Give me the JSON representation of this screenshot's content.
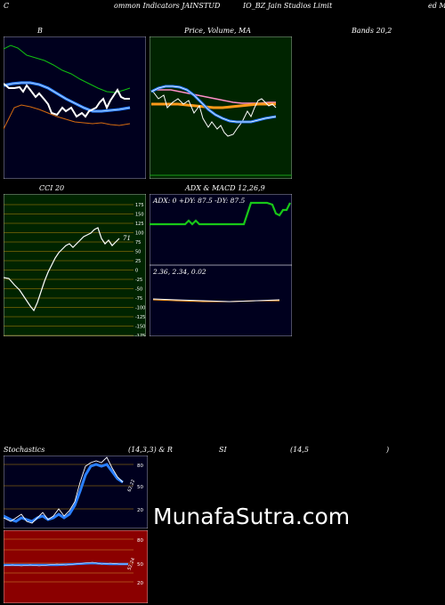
{
  "header": {
    "c": "C",
    "common": "ommon Indicators JAINSTUD",
    "ticker_tail": "IO_BZ Jain Studios Limit",
    "right_tail": "ed Ma"
  },
  "bollinger": {
    "label_b": "B",
    "label_mid": "Price, Volume, MA",
    "label_right": "Bands 20,2"
  },
  "cci": {
    "label": "CCI 20",
    "value": "71",
    "ticks": [
      "175",
      "150",
      "125",
      "100",
      "75",
      "50",
      "25",
      "0",
      "-25",
      "-50",
      "-75",
      "-100",
      "-125",
      "-150",
      "-175"
    ]
  },
  "adx": {
    "label": "ADX  & MACD 12,26,9",
    "readout": "ADX: 0  +DY: 87.5 -DY: 87.5"
  },
  "macd": {
    "readout": "2.36,  2.34,  0.02"
  },
  "stoch": {
    "label_left": "Stochastics",
    "label_mid": "(14,3,3) & R",
    "label_si": "SI",
    "label_params": "(14,5",
    "label_close": ")",
    "ticks": [
      "80",
      "50",
      "20"
    ],
    "value": "62.22"
  },
  "rsi": {
    "ticks": [
      "80",
      "50",
      "20"
    ],
    "value": "52.24"
  },
  "watermark": "MunafaSutra.com",
  "colors": {
    "bg": "#000000",
    "panel_dark": "#00001e",
    "panel_green": "#002400",
    "panel_red": "#8b0000",
    "blue": "#2a7fff",
    "green": "#18c818",
    "orange": "#d46a10",
    "grid": "#b8860b"
  }
}
